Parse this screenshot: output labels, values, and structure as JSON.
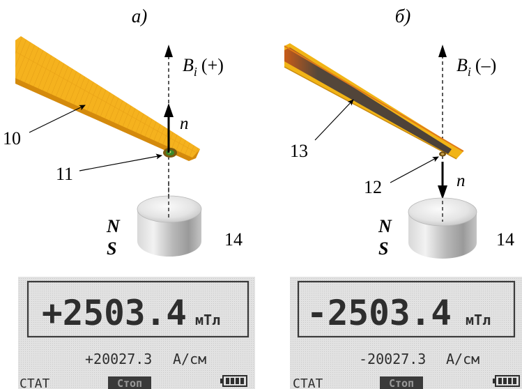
{
  "colors": {
    "strip_a": "#f5b21e",
    "strip_a_edge": "#d48a0c",
    "strip_b": "#f1b416",
    "strip_b_band": "#55473a",
    "lcd_bg": "#d9d9d9",
    "lcd_text": "#2e2e2e",
    "magnet": "#d3d3d3"
  },
  "panel_a": {
    "heading": "а)",
    "field_label": "B",
    "field_sub": "i",
    "field_sign": "(+)",
    "normal_label": "n",
    "strip_label": "10",
    "sensor_label": "11",
    "magnet_n": "N",
    "magnet_s": "S",
    "magnet_label": "14",
    "display": {
      "main_value": "+2503.4",
      "main_unit": "мТл",
      "secondary_value": "+20027.3",
      "secondary_unit": "А/см",
      "status_left": "СТАТ",
      "status_button": "Стоп"
    }
  },
  "panel_b": {
    "heading": "б)",
    "field_label": "B",
    "field_sub": "i",
    "field_sign": "(–)",
    "normal_label": "n",
    "strip_label": "13",
    "sensor_label": "12",
    "magnet_n": "N",
    "magnet_s": "S",
    "magnet_label": "14",
    "display": {
      "main_value": "-2503.4",
      "main_unit": "мТл",
      "secondary_value": "-20027.3",
      "secondary_unit": "А/см",
      "status_left": "СТАТ",
      "status_button": "Стоп"
    }
  }
}
